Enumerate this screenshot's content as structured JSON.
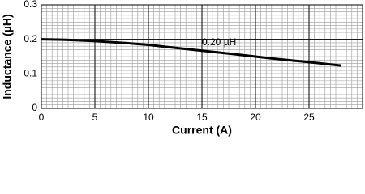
{
  "chart_data": {
    "type": "line",
    "xlabel": "Current (A)",
    "ylabel": "Inductance (µH)",
    "annotation": {
      "text": "0.20 µH",
      "x": 15,
      "y": 0.19
    },
    "x": [
      0,
      2,
      5,
      8,
      10,
      12,
      15,
      18,
      20,
      22,
      25,
      28
    ],
    "series": [
      {
        "name": "0.20 µH",
        "color": "#000000",
        "values": [
          0.2,
          0.199,
          0.195,
          0.189,
          0.184,
          0.177,
          0.167,
          0.157,
          0.15,
          0.143,
          0.134,
          0.124
        ]
      }
    ],
    "xlim": [
      0,
      30
    ],
    "xticks": [
      0,
      5,
      10,
      15,
      20,
      25
    ],
    "ylim": [
      0,
      0.3
    ],
    "yticks": [
      0,
      0.1,
      0.2,
      0.3
    ],
    "grid": true,
    "x_minor_divisions": 10,
    "y_minor_divisions": 10
  }
}
